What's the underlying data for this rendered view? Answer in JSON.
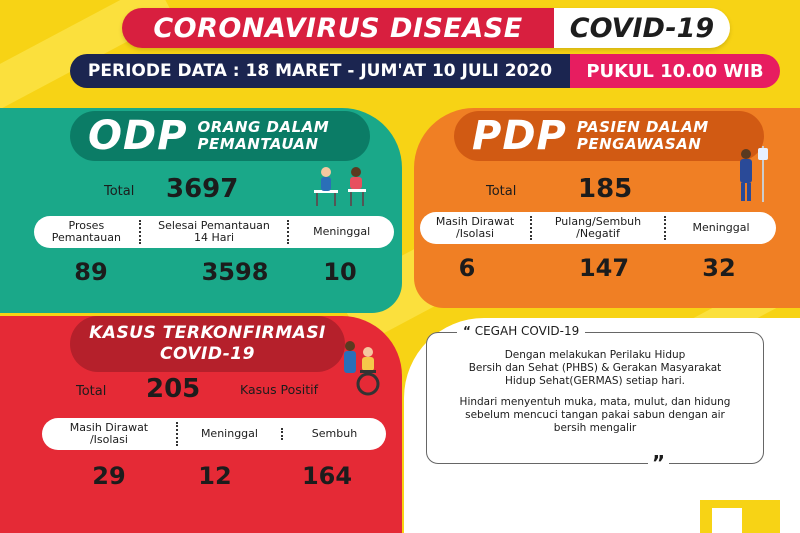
{
  "header": {
    "title": "CORONAVIRUS DISEASE",
    "subtitle": "COVID-19",
    "period": "PERIODE DATA : 18 MARET - JUM'AT 10 JULI 2020",
    "time": "PUKUL 10.00 WIB"
  },
  "odp": {
    "abbr": "ODP",
    "desc_line1": "ORANG DALAM",
    "desc_line2": "PEMANTAUAN",
    "total_label": "Total",
    "total_value": "3697",
    "columns": [
      {
        "label_line1": "Proses",
        "label_line2": "Pemantauan",
        "value": "89"
      },
      {
        "label_line1": "Selesai Pemantauan",
        "label_line2": "14 Hari",
        "value": "3598"
      },
      {
        "label_line1": "Meninggal",
        "label_line2": "",
        "value": "10"
      }
    ]
  },
  "pdp": {
    "abbr": "PDP",
    "desc_line1": "PASIEN DALAM",
    "desc_line2": "PENGAWASAN",
    "total_label": "Total",
    "total_value": "185",
    "columns": [
      {
        "label_line1": "Masih Dirawat",
        "label_line2": "/Isolasi",
        "value": "6"
      },
      {
        "label_line1": "Pulang/Sembuh",
        "label_line2": "/Negatif",
        "value": "147"
      },
      {
        "label_line1": "Meninggal",
        "label_line2": "",
        "value": "32"
      }
    ]
  },
  "kasus": {
    "title_line1": "KASUS TERKONFIRMASI",
    "title_line2": "COVID-19",
    "total_label": "Total",
    "total_value": "205",
    "positive_label": "Kasus Positif",
    "columns": [
      {
        "label_line1": "Masih Dirawat",
        "label_line2": "/Isolasi",
        "value": "29"
      },
      {
        "label_line1": "Meninggal",
        "label_line2": "",
        "value": "12"
      },
      {
        "label_line1": "Sembuh",
        "label_line2": "",
        "value": "164"
      }
    ]
  },
  "cegah": {
    "title": "CEGAH COVID-19",
    "open_quote": "“",
    "close_quote": "”",
    "para1_line1": "Dengan melakukan Perilaku Hidup",
    "para1_line2": "Bersih dan Sehat (PHBS) & Gerakan Masyarakat",
    "para1_line3": "Hidup Sehat(GERMAS) setiap hari.",
    "para2_line1": "Hindari menyentuh muka, mata, mulut, dan hidung",
    "para2_line2": "sebelum mencuci tangan pakai sabun dengan air",
    "para2_line3": "bersih mengalir"
  },
  "colors": {
    "background": "#f7d315",
    "odp": "#1aa889",
    "pdp": "#f07f24",
    "kasus": "#e52a36",
    "title_red": "#d81f3f",
    "period_navy": "#1b2550",
    "time_pink": "#e71d60"
  },
  "icons": [
    "doctor-patient-icon",
    "patient-iv-icon",
    "wheelchair-patient-icon"
  ]
}
